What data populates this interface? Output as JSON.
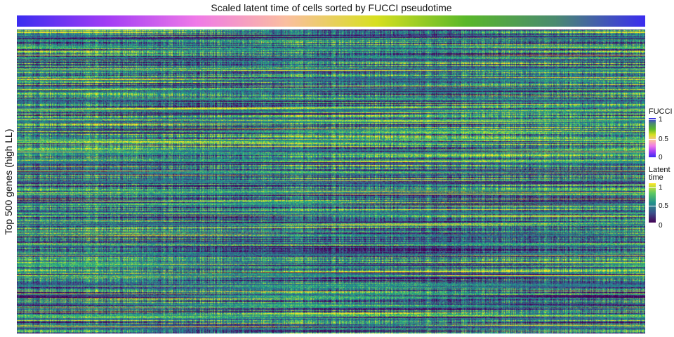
{
  "chart_data": {
    "type": "heatmap",
    "title": "Scaled latent time of cells sorted by FUCCI pseudotime",
    "ylabel": "Top 500 genes (high LL)",
    "xlabel": "",
    "rows": 500,
    "value_range": [
      0,
      1
    ],
    "annotation_track": {
      "name": "FUCCI",
      "range": [
        0,
        1
      ],
      "ticks": [
        "0",
        "0.5",
        "1"
      ],
      "colors": [
        "#3b2df0",
        "#a23df5",
        "#f07ae8",
        "#fbbfa0",
        "#d8e020",
        "#5ab82a",
        "#4a8a70",
        "#3b2df0"
      ]
    },
    "legends": [
      {
        "title": "FUCCI",
        "ticks": [
          "1",
          "0.5",
          "0"
        ],
        "colors": [
          "#3b2df0",
          "#4a8a70",
          "#5ab82a",
          "#d8e020",
          "#fbbfa0",
          "#f07ae8",
          "#a23df5",
          "#3b2df0"
        ]
      },
      {
        "title": "Latent\ntime",
        "ticks": [
          "1",
          "0.5",
          "0"
        ],
        "colors": [
          "#fde725",
          "#5ec962",
          "#21918c",
          "#3b528b",
          "#440154"
        ]
      }
    ],
    "colormap": "viridis",
    "legend_position": "right"
  }
}
